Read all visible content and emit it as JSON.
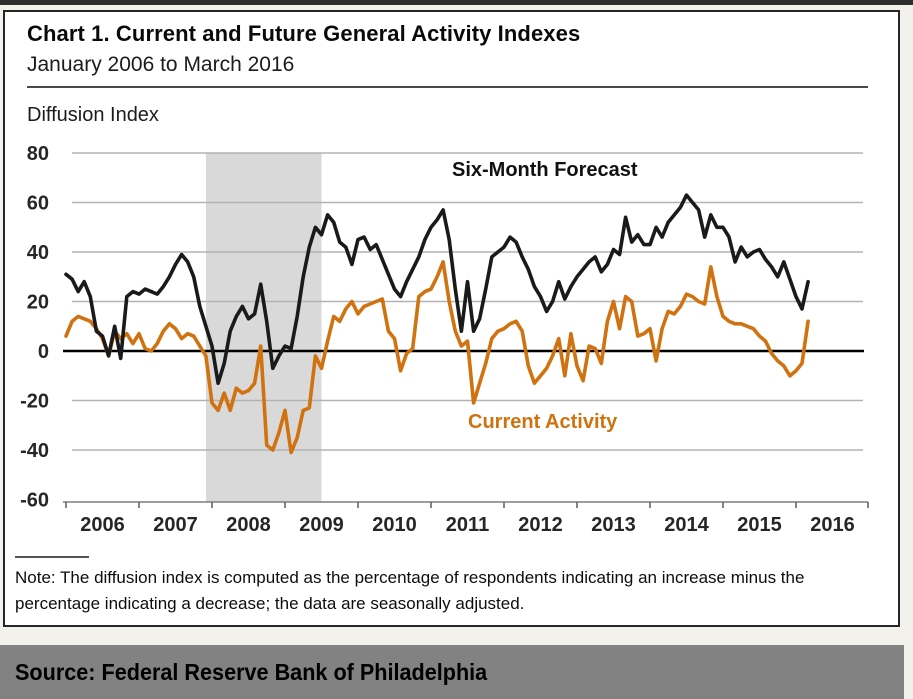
{
  "page": {
    "source_bar_label": "Source: Federal Reserve Bank of Philadelphia"
  },
  "chart": {
    "title": "Chart 1. Current and Future General Activity Indexes",
    "subtitle": "January 2006 to March 2016",
    "y_axis_title": "Diffusion Index",
    "forecast_series_label": "Six-Month Forecast",
    "current_series_label": "Current Activity",
    "note": "Note: The diffusion index is computed as the percentage of respondents indicating an increase minus the percentage indicating a decrease; the data are seasonally adjusted."
  },
  "colors": {
    "forecast_line": "#1a1a1a",
    "current_line": "#d0720f",
    "recession_band": "#d9d9d9",
    "gridline": "#b3b3b3",
    "zero_line": "#000000",
    "axis_line": "#7f7f7f",
    "tick_label": "#262626",
    "source_bar_bg": "#828282"
  },
  "chart_data": {
    "type": "line",
    "title": "Chart 1. Current and Future General Activity Indexes",
    "subtitle": "January 2006 to March 2016",
    "ylabel": "Diffusion Index",
    "ylim": [
      -60,
      80
    ],
    "ytick_interval": 20,
    "grid": true,
    "zero_line": true,
    "x_unit": "month",
    "x_start": "2006-01",
    "x_end": "2016-03",
    "xtick_labels": [
      "2006",
      "2007",
      "2008",
      "2009",
      "2010",
      "2011",
      "2012",
      "2013",
      "2014",
      "2015",
      "2016"
    ],
    "recession_band": {
      "from": "2007-12",
      "to": "2009-06"
    },
    "legend_position": "inline-annotations",
    "series": [
      {
        "name": "Six-Month Forecast",
        "color": "#1a1a1a",
        "values": [
          31,
          29,
          24,
          28,
          22,
          8,
          6,
          -2,
          10,
          -3,
          22,
          24,
          23,
          25,
          24,
          23,
          26,
          30,
          35,
          39,
          36,
          30,
          18,
          10,
          2,
          -13,
          -5,
          8,
          14,
          18,
          13,
          15,
          27,
          12,
          -7,
          -2,
          2,
          1,
          14,
          30,
          42,
          50,
          47,
          55,
          52,
          44,
          42,
          35,
          45,
          46,
          41,
          43,
          37,
          31,
          25,
          22,
          28,
          33,
          38,
          45,
          50,
          53,
          57,
          45,
          25,
          8,
          28,
          8,
          13,
          25,
          38,
          40,
          42,
          46,
          44,
          38,
          33,
          26,
          22,
          16,
          20,
          28,
          21,
          26,
          30,
          33,
          36,
          38,
          32,
          35,
          41,
          39,
          54,
          44,
          47,
          43,
          43,
          50,
          46,
          52,
          55,
          58,
          63,
          60,
          57,
          46,
          55,
          50,
          50,
          46,
          36,
          42,
          38,
          40,
          41,
          37,
          34,
          30,
          36,
          29,
          22,
          17,
          28
        ]
      },
      {
        "name": "Current Activity",
        "color": "#d0720f",
        "values": [
          6,
          12,
          14,
          13,
          12,
          9,
          5,
          -2,
          8,
          5,
          7,
          3,
          7,
          1,
          0,
          3,
          8,
          11,
          9,
          5,
          7,
          6,
          2,
          -2,
          -21,
          -24,
          -17,
          -24,
          -15,
          -17,
          -16,
          -13,
          2,
          -38,
          -40,
          -33,
          -24,
          -41,
          -35,
          -24,
          -23,
          -2,
          -7,
          4,
          14,
          12,
          17,
          20,
          15,
          18,
          19,
          20,
          21,
          8,
          5,
          -8,
          -1,
          1,
          22,
          24,
          25,
          30,
          36,
          20,
          8,
          2,
          4,
          -21,
          -13,
          -5,
          5,
          8,
          9,
          11,
          12,
          8,
          -6,
          -13,
          -10,
          -7,
          -2,
          5,
          -10,
          7,
          -6,
          -12,
          2,
          1,
          -5,
          12,
          20,
          9,
          22,
          20,
          6,
          7,
          9,
          -4,
          9,
          16,
          15,
          18,
          23,
          22,
          20,
          19,
          34,
          22,
          14,
          12,
          11,
          11,
          10,
          9,
          6,
          4,
          -1,
          -4,
          -6,
          -10,
          -8,
          -5,
          12
        ]
      }
    ]
  }
}
